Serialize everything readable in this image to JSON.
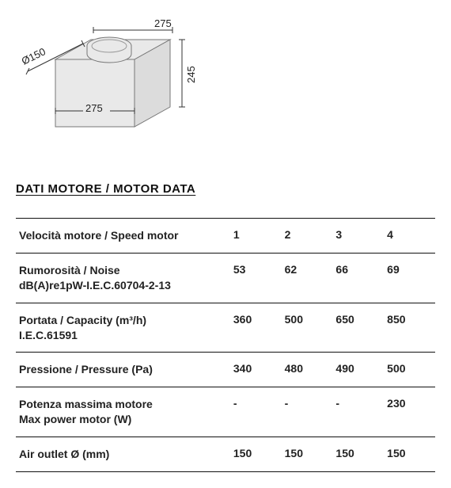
{
  "diagram": {
    "dims": {
      "diameter": "Ø150",
      "width": "275",
      "depth": "275",
      "height": "245"
    },
    "colors": {
      "fill": "#e9e9e9",
      "stroke": "#777",
      "dim_line": "#333"
    }
  },
  "section_title": "DATI MOTORE / MOTOR DATA",
  "table": {
    "rows": [
      {
        "label": "Velocità motore / Speed motor",
        "values": [
          "1",
          "2",
          "3",
          "4"
        ]
      },
      {
        "label": "Rumorosità / Noise\ndB(A)re1pW-I.E.C.60704-2-13",
        "values": [
          "53",
          "62",
          "66",
          "69"
        ]
      },
      {
        "label": "Portata / Capacity (m³/h)\nI.E.C.61591",
        "values": [
          "360",
          "500",
          "650",
          "850"
        ]
      },
      {
        "label": "Pressione / Pressure (Pa)",
        "values": [
          "340",
          "480",
          "490",
          "500"
        ]
      },
      {
        "label": "Potenza massima motore\nMax power motor (W)",
        "values": [
          "-",
          "-",
          "-",
          "230"
        ]
      },
      {
        "label": "Air outlet Ø (mm)",
        "values": [
          "150",
          "150",
          "150",
          "150"
        ]
      }
    ]
  }
}
